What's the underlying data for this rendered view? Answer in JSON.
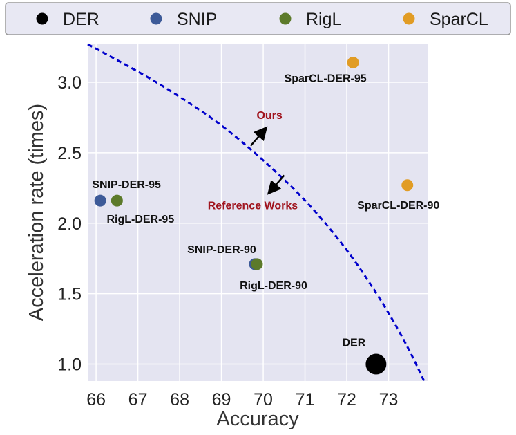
{
  "chart_data": {
    "type": "scatter",
    "title": "",
    "xlabel": "Accuracy",
    "ylabel": "Acceleration rate (times)",
    "xlim": [
      65.8,
      73.95
    ],
    "ylim": [
      0.88,
      3.27
    ],
    "xticks": [
      66,
      67,
      68,
      69,
      70,
      71,
      72,
      73
    ],
    "yticks": [
      1.0,
      1.5,
      2.0,
      2.5,
      3.0
    ],
    "xtick_labels": [
      "66",
      "67",
      "68",
      "69",
      "70",
      "71",
      "72",
      "73"
    ],
    "ytick_labels": [
      "1.0",
      "1.5",
      "2.0",
      "2.5",
      "3.0"
    ],
    "grid": true,
    "legend_position": "top",
    "series": [
      {
        "name": "DER",
        "color": "#000000",
        "points": [
          {
            "x": 72.7,
            "y": 1.0,
            "label": "DER",
            "big": true
          }
        ]
      },
      {
        "name": "SNIP",
        "color": "#3d5a98",
        "points": [
          {
            "x": 66.1,
            "y": 2.16,
            "label": "SNIP-DER-95"
          },
          {
            "x": 69.8,
            "y": 1.71,
            "label": "SNIP-DER-90"
          }
        ]
      },
      {
        "name": "RigL",
        "color": "#5c7a2a",
        "points": [
          {
            "x": 66.5,
            "y": 2.16,
            "label": "RigL-DER-95"
          },
          {
            "x": 69.85,
            "y": 1.71,
            "label": "RigL-DER-90"
          }
        ]
      },
      {
        "name": "SparCL",
        "color": "#e19c24",
        "points": [
          {
            "x": 72.15,
            "y": 3.14,
            "label": "SparCL-DER-95"
          },
          {
            "x": 73.45,
            "y": 2.27,
            "label": "SparCL-DER-90"
          }
        ]
      }
    ],
    "frontier_curve": {
      "color": "#0000cc",
      "style": "dashed",
      "points": [
        [
          65.8,
          3.27
        ],
        [
          67.0,
          3.08
        ],
        [
          68.0,
          2.9
        ],
        [
          69.0,
          2.7
        ],
        [
          70.0,
          2.45
        ],
        [
          71.0,
          2.17
        ],
        [
          72.0,
          1.82
        ],
        [
          72.9,
          1.42
        ],
        [
          73.5,
          1.1
        ],
        [
          73.85,
          0.88
        ]
      ]
    },
    "annotations": [
      {
        "text": "Ours",
        "color": "#a0141e",
        "x": 70.15,
        "y": 2.74,
        "arrow_from": [
          69.7,
          2.55
        ],
        "arrow_to": [
          70.05,
          2.67
        ]
      },
      {
        "text": "Reference Works",
        "color": "#a0141e",
        "x": 69.75,
        "y": 2.1,
        "arrow_from": [
          70.5,
          2.34
        ],
        "arrow_to": [
          70.15,
          2.22
        ]
      }
    ]
  }
}
